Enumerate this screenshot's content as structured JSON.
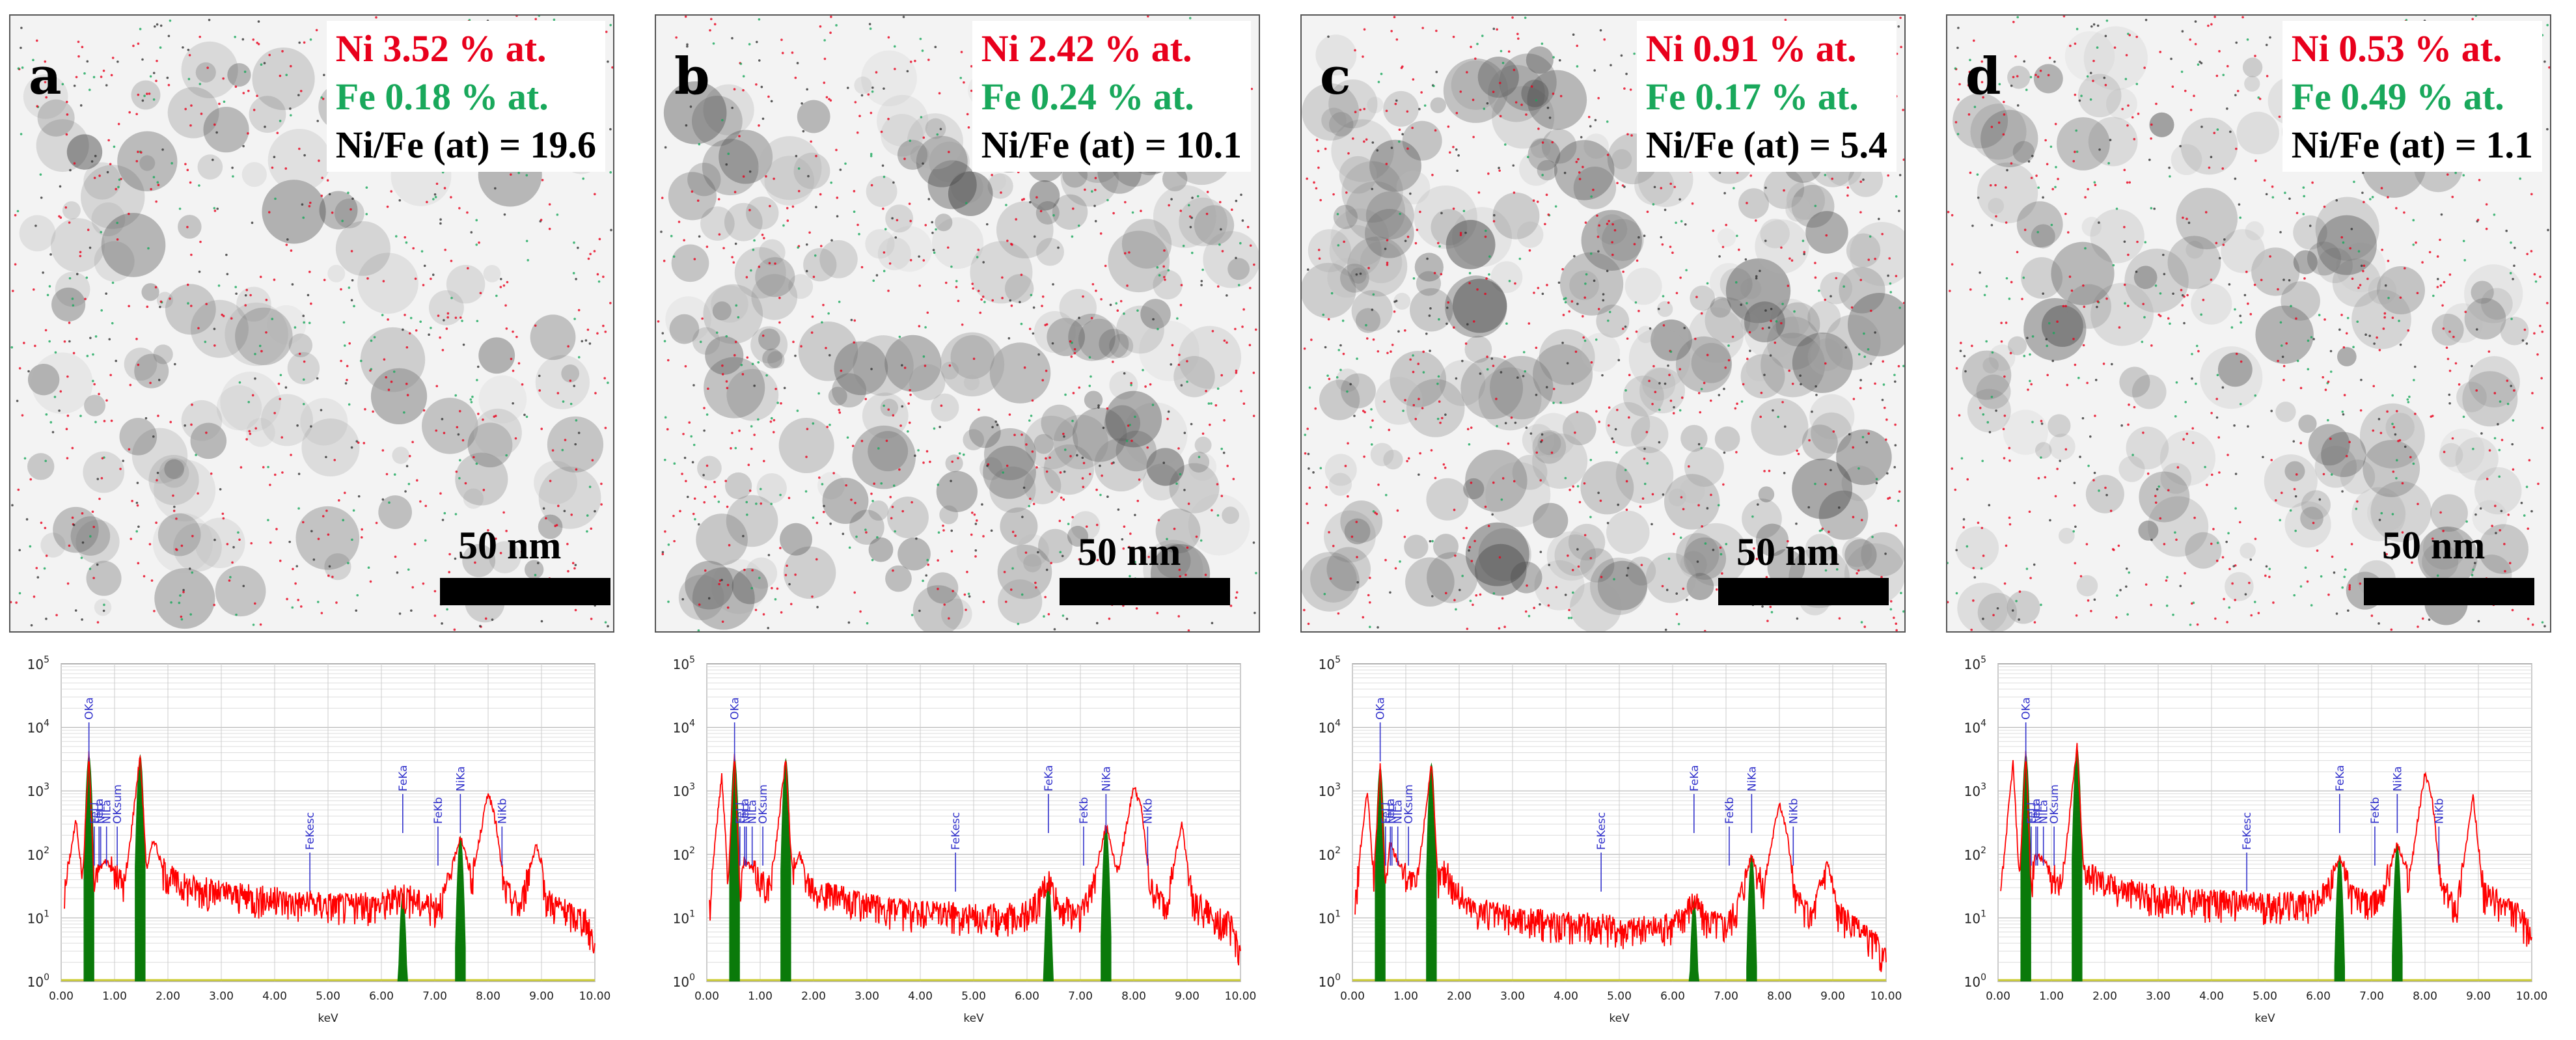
{
  "figure_panels": [
    {
      "letter": "a",
      "ni": "Ni 3.52 % at.",
      "fe": "Fe 0.18 % at.",
      "ratio": "Ni/Fe (at) = 19.6",
      "scale": "50 nm"
    },
    {
      "letter": "b",
      "ni": "Ni 2.42 % at.",
      "fe": "Fe 0.24 % at.",
      "ratio": "Ni/Fe (at) = 10.1",
      "scale": "50 nm"
    },
    {
      "letter": "c",
      "ni": "Ni 0.91 % at.",
      "fe": "Fe 0.17 % at.",
      "ratio": "Ni/Fe (at) = 5.4",
      "scale": "50 nm"
    },
    {
      "letter": "d",
      "ni": "Ni 0.53 % at.",
      "fe": "Fe 0.49 % at.",
      "ratio": "Ni/Fe (at) = 1.1",
      "scale": "50 nm"
    }
  ],
  "colors": {
    "ni": "#e8001c",
    "fe": "#19a85b",
    "spectrum": "#ff0000",
    "peak_fill": "#0a7a0a",
    "marker": "#3333cc",
    "baseline": "#cccc33"
  },
  "chart_data": [
    {
      "type": "line",
      "panel": "a",
      "title": "",
      "xlabel": "keV",
      "ylabel": "",
      "xlim": [
        0,
        10
      ],
      "ylim": [
        1,
        100000
      ],
      "yscale": "log",
      "x_ticks": [
        "0.00",
        "1.00",
        "2.00",
        "3.00",
        "4.00",
        "5.00",
        "6.00",
        "7.00",
        "8.00",
        "9.00",
        "10.00"
      ],
      "y_ticks": [
        "10^0",
        "10^1",
        "10^2",
        "10^3",
        "10^4",
        "10^5"
      ],
      "series": [
        {
          "name": "spectrum",
          "points": [
            [
              0.05,
              20
            ],
            [
              0.15,
              80
            ],
            [
              0.28,
              350
            ],
            [
              0.4,
              40
            ],
            [
              0.52,
              3800
            ],
            [
              0.62,
              30
            ],
            [
              0.7,
              60
            ],
            [
              0.85,
              80
            ],
            [
              1.0,
              50
            ],
            [
              1.2,
              35
            ],
            [
              1.48,
              3800
            ],
            [
              1.6,
              60
            ],
            [
              1.74,
              180
            ],
            [
              1.9,
              60
            ],
            [
              2.2,
              35
            ],
            [
              2.6,
              30
            ],
            [
              3.0,
              25
            ],
            [
              3.5,
              22
            ],
            [
              4.0,
              20
            ],
            [
              4.5,
              18
            ],
            [
              5.0,
              17
            ],
            [
              5.5,
              16
            ],
            [
              6.0,
              17
            ],
            [
              6.2,
              20
            ],
            [
              6.4,
              25
            ],
            [
              6.6,
              20
            ],
            [
              7.0,
              15
            ],
            [
              7.2,
              25
            ],
            [
              7.48,
              200
            ],
            [
              7.7,
              40
            ],
            [
              8.0,
              1000
            ],
            [
              8.15,
              300
            ],
            [
              8.3,
              30
            ],
            [
              8.6,
              15
            ],
            [
              8.9,
              150
            ],
            [
              9.1,
              20
            ],
            [
              9.5,
              12
            ],
            [
              9.8,
              10
            ],
            [
              10.0,
              4
            ]
          ]
        }
      ],
      "peak_fills": [
        {
          "label": "OKa",
          "center": 0.52,
          "value": 3800
        },
        {
          "label": "",
          "center": 1.48,
          "value": 3800
        },
        {
          "label": "FeKa",
          "center": 6.4,
          "value": 25
        },
        {
          "label": "NiKa",
          "center": 7.48,
          "value": 200
        }
      ],
      "markers": [
        {
          "label": "OKa",
          "x": 0.52
        },
        {
          "label": "FeLl",
          "x": 0.62
        },
        {
          "label": "FeLa",
          "x": 0.71
        },
        {
          "label": "NiLl",
          "x": 0.74
        },
        {
          "label": "NiLa",
          "x": 0.85
        },
        {
          "label": "OKsum",
          "x": 1.05
        },
        {
          "label": "FeKesc",
          "x": 4.66
        },
        {
          "label": "FeKa",
          "x": 6.4
        },
        {
          "label": "FeKb",
          "x": 7.06
        },
        {
          "label": "NiKa",
          "x": 7.48
        },
        {
          "label": "NiKb",
          "x": 8.26
        }
      ]
    },
    {
      "type": "line",
      "panel": "b",
      "title": "",
      "xlabel": "keV",
      "ylabel": "",
      "xlim": [
        0,
        10
      ],
      "ylim": [
        1,
        100000
      ],
      "yscale": "log",
      "x_ticks": [
        "0.00",
        "1.00",
        "2.00",
        "3.00",
        "4.00",
        "5.00",
        "6.00",
        "7.00",
        "8.00",
        "9.00",
        "10.00"
      ],
      "y_ticks": [
        "10^0",
        "10^1",
        "10^2",
        "10^3",
        "10^4",
        "10^5"
      ],
      "series": [
        {
          "name": "spectrum",
          "points": [
            [
              0.05,
              15
            ],
            [
              0.15,
              150
            ],
            [
              0.28,
              1800
            ],
            [
              0.4,
              40
            ],
            [
              0.52,
              3500
            ],
            [
              0.62,
              30
            ],
            [
              0.7,
              80
            ],
            [
              0.85,
              60
            ],
            [
              1.0,
              40
            ],
            [
              1.2,
              30
            ],
            [
              1.48,
              3300
            ],
            [
              1.6,
              50
            ],
            [
              1.74,
              100
            ],
            [
              1.9,
              40
            ],
            [
              2.2,
              25
            ],
            [
              2.6,
              20
            ],
            [
              3.0,
              16
            ],
            [
              3.5,
              14
            ],
            [
              4.0,
              12
            ],
            [
              4.5,
              12
            ],
            [
              5.0,
              11
            ],
            [
              5.5,
              11
            ],
            [
              6.0,
              12
            ],
            [
              6.2,
              18
            ],
            [
              6.4,
              40
            ],
            [
              6.6,
              15
            ],
            [
              7.0,
              12
            ],
            [
              7.2,
              25
            ],
            [
              7.48,
              300
            ],
            [
              7.7,
              50
            ],
            [
              8.0,
              1200
            ],
            [
              8.15,
              500
            ],
            [
              8.3,
              30
            ],
            [
              8.6,
              15
            ],
            [
              8.9,
              300
            ],
            [
              9.1,
              20
            ],
            [
              9.5,
              10
            ],
            [
              9.8,
              8
            ],
            [
              10.0,
              3
            ]
          ]
        }
      ],
      "peak_fills": [
        {
          "label": "OKa",
          "center": 0.52,
          "value": 3500
        },
        {
          "label": "",
          "center": 1.48,
          "value": 3300
        },
        {
          "label": "FeKa",
          "center": 6.4,
          "value": 40
        },
        {
          "label": "NiKa",
          "center": 7.48,
          "value": 300
        }
      ],
      "markers": [
        {
          "label": "OKa",
          "x": 0.52
        },
        {
          "label": "FeLl",
          "x": 0.62
        },
        {
          "label": "FeLa",
          "x": 0.71
        },
        {
          "label": "NiLl",
          "x": 0.74
        },
        {
          "label": "NiLa",
          "x": 0.85
        },
        {
          "label": "OKsum",
          "x": 1.05
        },
        {
          "label": "FeKesc",
          "x": 4.66
        },
        {
          "label": "FeKa",
          "x": 6.4
        },
        {
          "label": "FeKb",
          "x": 7.06
        },
        {
          "label": "NiKa",
          "x": 7.48
        },
        {
          "label": "NiKb",
          "x": 8.26
        }
      ]
    },
    {
      "type": "line",
      "panel": "c",
      "title": "",
      "xlabel": "keV",
      "ylabel": "",
      "xlim": [
        0,
        10
      ],
      "ylim": [
        1,
        100000
      ],
      "yscale": "log",
      "x_ticks": [
        "0.00",
        "1.00",
        "2.00",
        "3.00",
        "4.00",
        "5.00",
        "6.00",
        "7.00",
        "8.00",
        "9.00",
        "10.00"
      ],
      "y_ticks": [
        "10^0",
        "10^1",
        "10^2",
        "10^3",
        "10^4",
        "10^5"
      ],
      "series": [
        {
          "name": "spectrum",
          "points": [
            [
              0.05,
              15
            ],
            [
              0.15,
              120
            ],
            [
              0.28,
              1000
            ],
            [
              0.4,
              40
            ],
            [
              0.52,
              2500
            ],
            [
              0.62,
              30
            ],
            [
              0.7,
              150
            ],
            [
              0.85,
              80
            ],
            [
              1.0,
              50
            ],
            [
              1.2,
              30
            ],
            [
              1.48,
              2800
            ],
            [
              1.6,
              40
            ],
            [
              1.74,
              60
            ],
            [
              1.9,
              30
            ],
            [
              2.2,
              15
            ],
            [
              2.6,
              12
            ],
            [
              3.0,
              10
            ],
            [
              3.5,
              9
            ],
            [
              4.0,
              8
            ],
            [
              4.5,
              8
            ],
            [
              5.0,
              7
            ],
            [
              5.5,
              7
            ],
            [
              6.0,
              8
            ],
            [
              6.2,
              12
            ],
            [
              6.4,
              20
            ],
            [
              6.6,
              10
            ],
            [
              7.0,
              8
            ],
            [
              7.2,
              15
            ],
            [
              7.48,
              100
            ],
            [
              7.7,
              30
            ],
            [
              8.0,
              700
            ],
            [
              8.15,
              200
            ],
            [
              8.3,
              20
            ],
            [
              8.6,
              10
            ],
            [
              8.9,
              80
            ],
            [
              9.1,
              12
            ],
            [
              9.5,
              6
            ],
            [
              9.8,
              4
            ],
            [
              10.0,
              2
            ]
          ]
        }
      ],
      "peak_fills": [
        {
          "label": "OKa",
          "center": 0.52,
          "value": 2500
        },
        {
          "label": "",
          "center": 1.48,
          "value": 2800
        },
        {
          "label": "FeKa",
          "center": 6.4,
          "value": 20
        },
        {
          "label": "NiKa",
          "center": 7.48,
          "value": 100
        }
      ],
      "markers": [
        {
          "label": "OKa",
          "x": 0.52
        },
        {
          "label": "FeLl",
          "x": 0.62
        },
        {
          "label": "FeLa",
          "x": 0.71
        },
        {
          "label": "NiLl",
          "x": 0.74
        },
        {
          "label": "NiLa",
          "x": 0.85
        },
        {
          "label": "OKsum",
          "x": 1.05
        },
        {
          "label": "FeKesc",
          "x": 4.66
        },
        {
          "label": "FeKa",
          "x": 6.4
        },
        {
          "label": "FeKb",
          "x": 7.06
        },
        {
          "label": "NiKa",
          "x": 7.48
        },
        {
          "label": "NiKb",
          "x": 8.26
        }
      ]
    },
    {
      "type": "line",
      "panel": "d",
      "title": "",
      "xlabel": "keV",
      "ylabel": "",
      "xlim": [
        0,
        10
      ],
      "ylim": [
        1,
        100000
      ],
      "yscale": "log",
      "x_ticks": [
        "0.00",
        "1.00",
        "2.00",
        "3.00",
        "4.00",
        "5.00",
        "6.00",
        "7.00",
        "8.00",
        "9.00",
        "10.00"
      ],
      "y_ticks": [
        "10^0",
        "10^1",
        "10^2",
        "10^3",
        "10^4",
        "10^5"
      ],
      "series": [
        {
          "name": "spectrum",
          "points": [
            [
              0.05,
              20
            ],
            [
              0.15,
              200
            ],
            [
              0.28,
              2800
            ],
            [
              0.4,
              40
            ],
            [
              0.52,
              4000
            ],
            [
              0.62,
              30
            ],
            [
              0.7,
              100
            ],
            [
              0.85,
              80
            ],
            [
              1.0,
              50
            ],
            [
              1.2,
              35
            ],
            [
              1.48,
              5000
            ],
            [
              1.6,
              60
            ],
            [
              1.74,
              50
            ],
            [
              1.9,
              40
            ],
            [
              2.2,
              30
            ],
            [
              2.6,
              25
            ],
            [
              3.0,
              22
            ],
            [
              3.5,
              20
            ],
            [
              4.0,
              18
            ],
            [
              4.5,
              18
            ],
            [
              5.0,
              17
            ],
            [
              5.5,
              17
            ],
            [
              6.0,
              18
            ],
            [
              6.2,
              30
            ],
            [
              6.4,
              100
            ],
            [
              6.6,
              25
            ],
            [
              7.0,
              15
            ],
            [
              7.2,
              25
            ],
            [
              7.48,
              150
            ],
            [
              7.7,
              40
            ],
            [
              8.0,
              2000
            ],
            [
              8.15,
              600
            ],
            [
              8.3,
              30
            ],
            [
              8.6,
              15
            ],
            [
              8.9,
              800
            ],
            [
              9.1,
              25
            ],
            [
              9.5,
              15
            ],
            [
              9.8,
              10
            ],
            [
              10.0,
              5
            ]
          ]
        }
      ],
      "peak_fills": [
        {
          "label": "OKa",
          "center": 0.52,
          "value": 4000
        },
        {
          "label": "",
          "center": 1.48,
          "value": 5000
        },
        {
          "label": "FeKa",
          "center": 6.4,
          "value": 100
        },
        {
          "label": "NiKa",
          "center": 7.48,
          "value": 150
        }
      ],
      "markers": [
        {
          "label": "OKa",
          "x": 0.52
        },
        {
          "label": "FeLl",
          "x": 0.62
        },
        {
          "label": "FeLa",
          "x": 0.71
        },
        {
          "label": "NiLl",
          "x": 0.74
        },
        {
          "label": "NiLa",
          "x": 0.85
        },
        {
          "label": "OKsum",
          "x": 1.05
        },
        {
          "label": "FeKesc",
          "x": 4.66
        },
        {
          "label": "FeKa",
          "x": 6.4
        },
        {
          "label": "FeKb",
          "x": 7.06
        },
        {
          "label": "NiKa",
          "x": 7.48
        },
        {
          "label": "NiKb",
          "x": 8.26
        }
      ]
    }
  ]
}
